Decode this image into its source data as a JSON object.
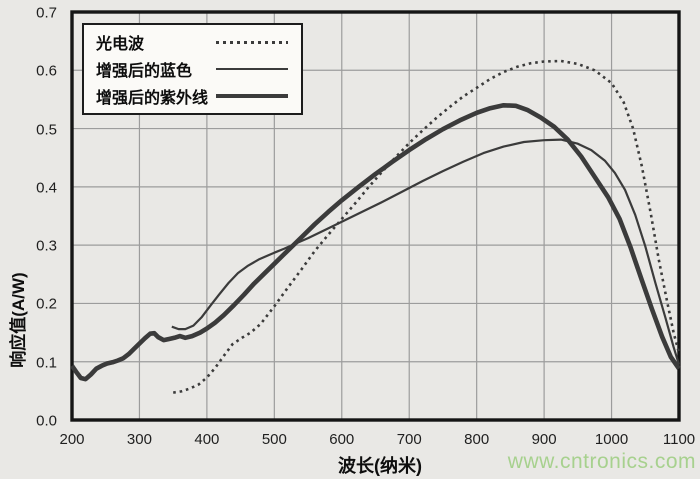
{
  "figure": {
    "background": "#e9e8e5",
    "border_color": "#151515",
    "grid_color": "#9c9c9c",
    "curve_color": "#3b3b3b",
    "legend_bg": "#fbfaf7",
    "watermark": {
      "text": "www.cntronics.com",
      "color": "#a7d18e"
    }
  },
  "chart_data": {
    "type": "line",
    "title": "",
    "xlabel": "波长(纳米)",
    "ylabel": "响应值(A/W)",
    "xlim": [
      200,
      1100
    ],
    "ylim": [
      0,
      0.7
    ],
    "x_ticks": [
      "200",
      "300",
      "400",
      "500",
      "600",
      "700",
      "800",
      "900",
      "1000",
      "1100"
    ],
    "x_tick_values": [
      200,
      300,
      400,
      500,
      600,
      700,
      800,
      900,
      1000,
      1100
    ],
    "y_ticks": [
      "0.0",
      "0.1",
      "0.2",
      "0.3",
      "0.4",
      "0.5",
      "0.6",
      "0.7"
    ],
    "y_tick_values": [
      0,
      0.1,
      0.2,
      0.3,
      0.4,
      0.5,
      0.6,
      0.7
    ],
    "grid": true,
    "legend_position": "top-left",
    "series": [
      {
        "name": "光电波",
        "sample": "dotted",
        "points": [
          [
            350,
            0.047
          ],
          [
            362,
            0.049
          ],
          [
            375,
            0.054
          ],
          [
            388,
            0.061
          ],
          [
            400,
            0.073
          ],
          [
            412,
            0.089
          ],
          [
            425,
            0.11
          ],
          [
            438,
            0.13
          ],
          [
            452,
            0.141
          ],
          [
            465,
            0.15
          ],
          [
            480,
            0.165
          ],
          [
            500,
            0.195
          ],
          [
            520,
            0.227
          ],
          [
            540,
            0.258
          ],
          [
            560,
            0.29
          ],
          [
            580,
            0.318
          ],
          [
            600,
            0.345
          ],
          [
            620,
            0.372
          ],
          [
            640,
            0.4
          ],
          [
            660,
            0.426
          ],
          [
            680,
            0.451
          ],
          [
            700,
            0.475
          ],
          [
            720,
            0.497
          ],
          [
            740,
            0.518
          ],
          [
            760,
            0.537
          ],
          [
            780,
            0.555
          ],
          [
            800,
            0.57
          ],
          [
            820,
            0.585
          ],
          [
            840,
            0.597
          ],
          [
            860,
            0.606
          ],
          [
            880,
            0.612
          ],
          [
            900,
            0.615
          ],
          [
            925,
            0.616
          ],
          [
            950,
            0.611
          ],
          [
            975,
            0.6
          ],
          [
            1000,
            0.578
          ],
          [
            1018,
            0.545
          ],
          [
            1032,
            0.5
          ],
          [
            1045,
            0.435
          ],
          [
            1058,
            0.355
          ],
          [
            1070,
            0.275
          ],
          [
            1082,
            0.205
          ],
          [
            1092,
            0.15
          ],
          [
            1100,
            0.115
          ]
        ]
      },
      {
        "name": "增强后的蓝色",
        "sample": "thin",
        "points": [
          [
            348,
            0.16
          ],
          [
            358,
            0.156
          ],
          [
            368,
            0.156
          ],
          [
            380,
            0.162
          ],
          [
            392,
            0.176
          ],
          [
            405,
            0.196
          ],
          [
            418,
            0.215
          ],
          [
            432,
            0.235
          ],
          [
            446,
            0.252
          ],
          [
            460,
            0.264
          ],
          [
            478,
            0.276
          ],
          [
            500,
            0.287
          ],
          [
            515,
            0.294
          ],
          [
            530,
            0.302
          ],
          [
            550,
            0.312
          ],
          [
            575,
            0.326
          ],
          [
            600,
            0.34
          ],
          [
            630,
            0.357
          ],
          [
            660,
            0.374
          ],
          [
            690,
            0.392
          ],
          [
            720,
            0.41
          ],
          [
            750,
            0.427
          ],
          [
            780,
            0.443
          ],
          [
            810,
            0.458
          ],
          [
            840,
            0.469
          ],
          [
            870,
            0.477
          ],
          [
            900,
            0.48
          ],
          [
            925,
            0.481
          ],
          [
            950,
            0.474
          ],
          [
            970,
            0.463
          ],
          [
            990,
            0.445
          ],
          [
            1005,
            0.424
          ],
          [
            1020,
            0.395
          ],
          [
            1035,
            0.352
          ],
          [
            1050,
            0.298
          ],
          [
            1065,
            0.235
          ],
          [
            1080,
            0.175
          ],
          [
            1092,
            0.125
          ],
          [
            1100,
            0.095
          ]
        ]
      },
      {
        "name": "增强后的紫外线",
        "sample": "thick",
        "points": [
          [
            200,
            0.093
          ],
          [
            206,
            0.083
          ],
          [
            213,
            0.072
          ],
          [
            220,
            0.07
          ],
          [
            228,
            0.078
          ],
          [
            236,
            0.088
          ],
          [
            244,
            0.093
          ],
          [
            252,
            0.097
          ],
          [
            260,
            0.099
          ],
          [
            268,
            0.102
          ],
          [
            276,
            0.106
          ],
          [
            284,
            0.113
          ],
          [
            292,
            0.122
          ],
          [
            300,
            0.131
          ],
          [
            308,
            0.14
          ],
          [
            316,
            0.148
          ],
          [
            322,
            0.149
          ],
          [
            328,
            0.142
          ],
          [
            336,
            0.137
          ],
          [
            344,
            0.139
          ],
          [
            352,
            0.141
          ],
          [
            360,
            0.144
          ],
          [
            368,
            0.141
          ],
          [
            378,
            0.144
          ],
          [
            390,
            0.15
          ],
          [
            400,
            0.157
          ],
          [
            412,
            0.167
          ],
          [
            425,
            0.18
          ],
          [
            440,
            0.197
          ],
          [
            455,
            0.215
          ],
          [
            470,
            0.234
          ],
          [
            485,
            0.251
          ],
          [
            500,
            0.268
          ],
          [
            515,
            0.285
          ],
          [
            530,
            0.302
          ],
          [
            545,
            0.319
          ],
          [
            560,
            0.336
          ],
          [
            580,
            0.357
          ],
          [
            600,
            0.377
          ],
          [
            625,
            0.4
          ],
          [
            650,
            0.422
          ],
          [
            675,
            0.443
          ],
          [
            700,
            0.463
          ],
          [
            725,
            0.482
          ],
          [
            750,
            0.499
          ],
          [
            775,
            0.514
          ],
          [
            800,
            0.527
          ],
          [
            820,
            0.535
          ],
          [
            840,
            0.54
          ],
          [
            858,
            0.539
          ],
          [
            875,
            0.532
          ],
          [
            895,
            0.519
          ],
          [
            915,
            0.503
          ],
          [
            935,
            0.481
          ],
          [
            955,
            0.452
          ],
          [
            975,
            0.417
          ],
          [
            995,
            0.382
          ],
          [
            1012,
            0.345
          ],
          [
            1028,
            0.297
          ],
          [
            1044,
            0.243
          ],
          [
            1060,
            0.19
          ],
          [
            1075,
            0.143
          ],
          [
            1088,
            0.108
          ],
          [
            1100,
            0.088
          ]
        ]
      }
    ]
  }
}
